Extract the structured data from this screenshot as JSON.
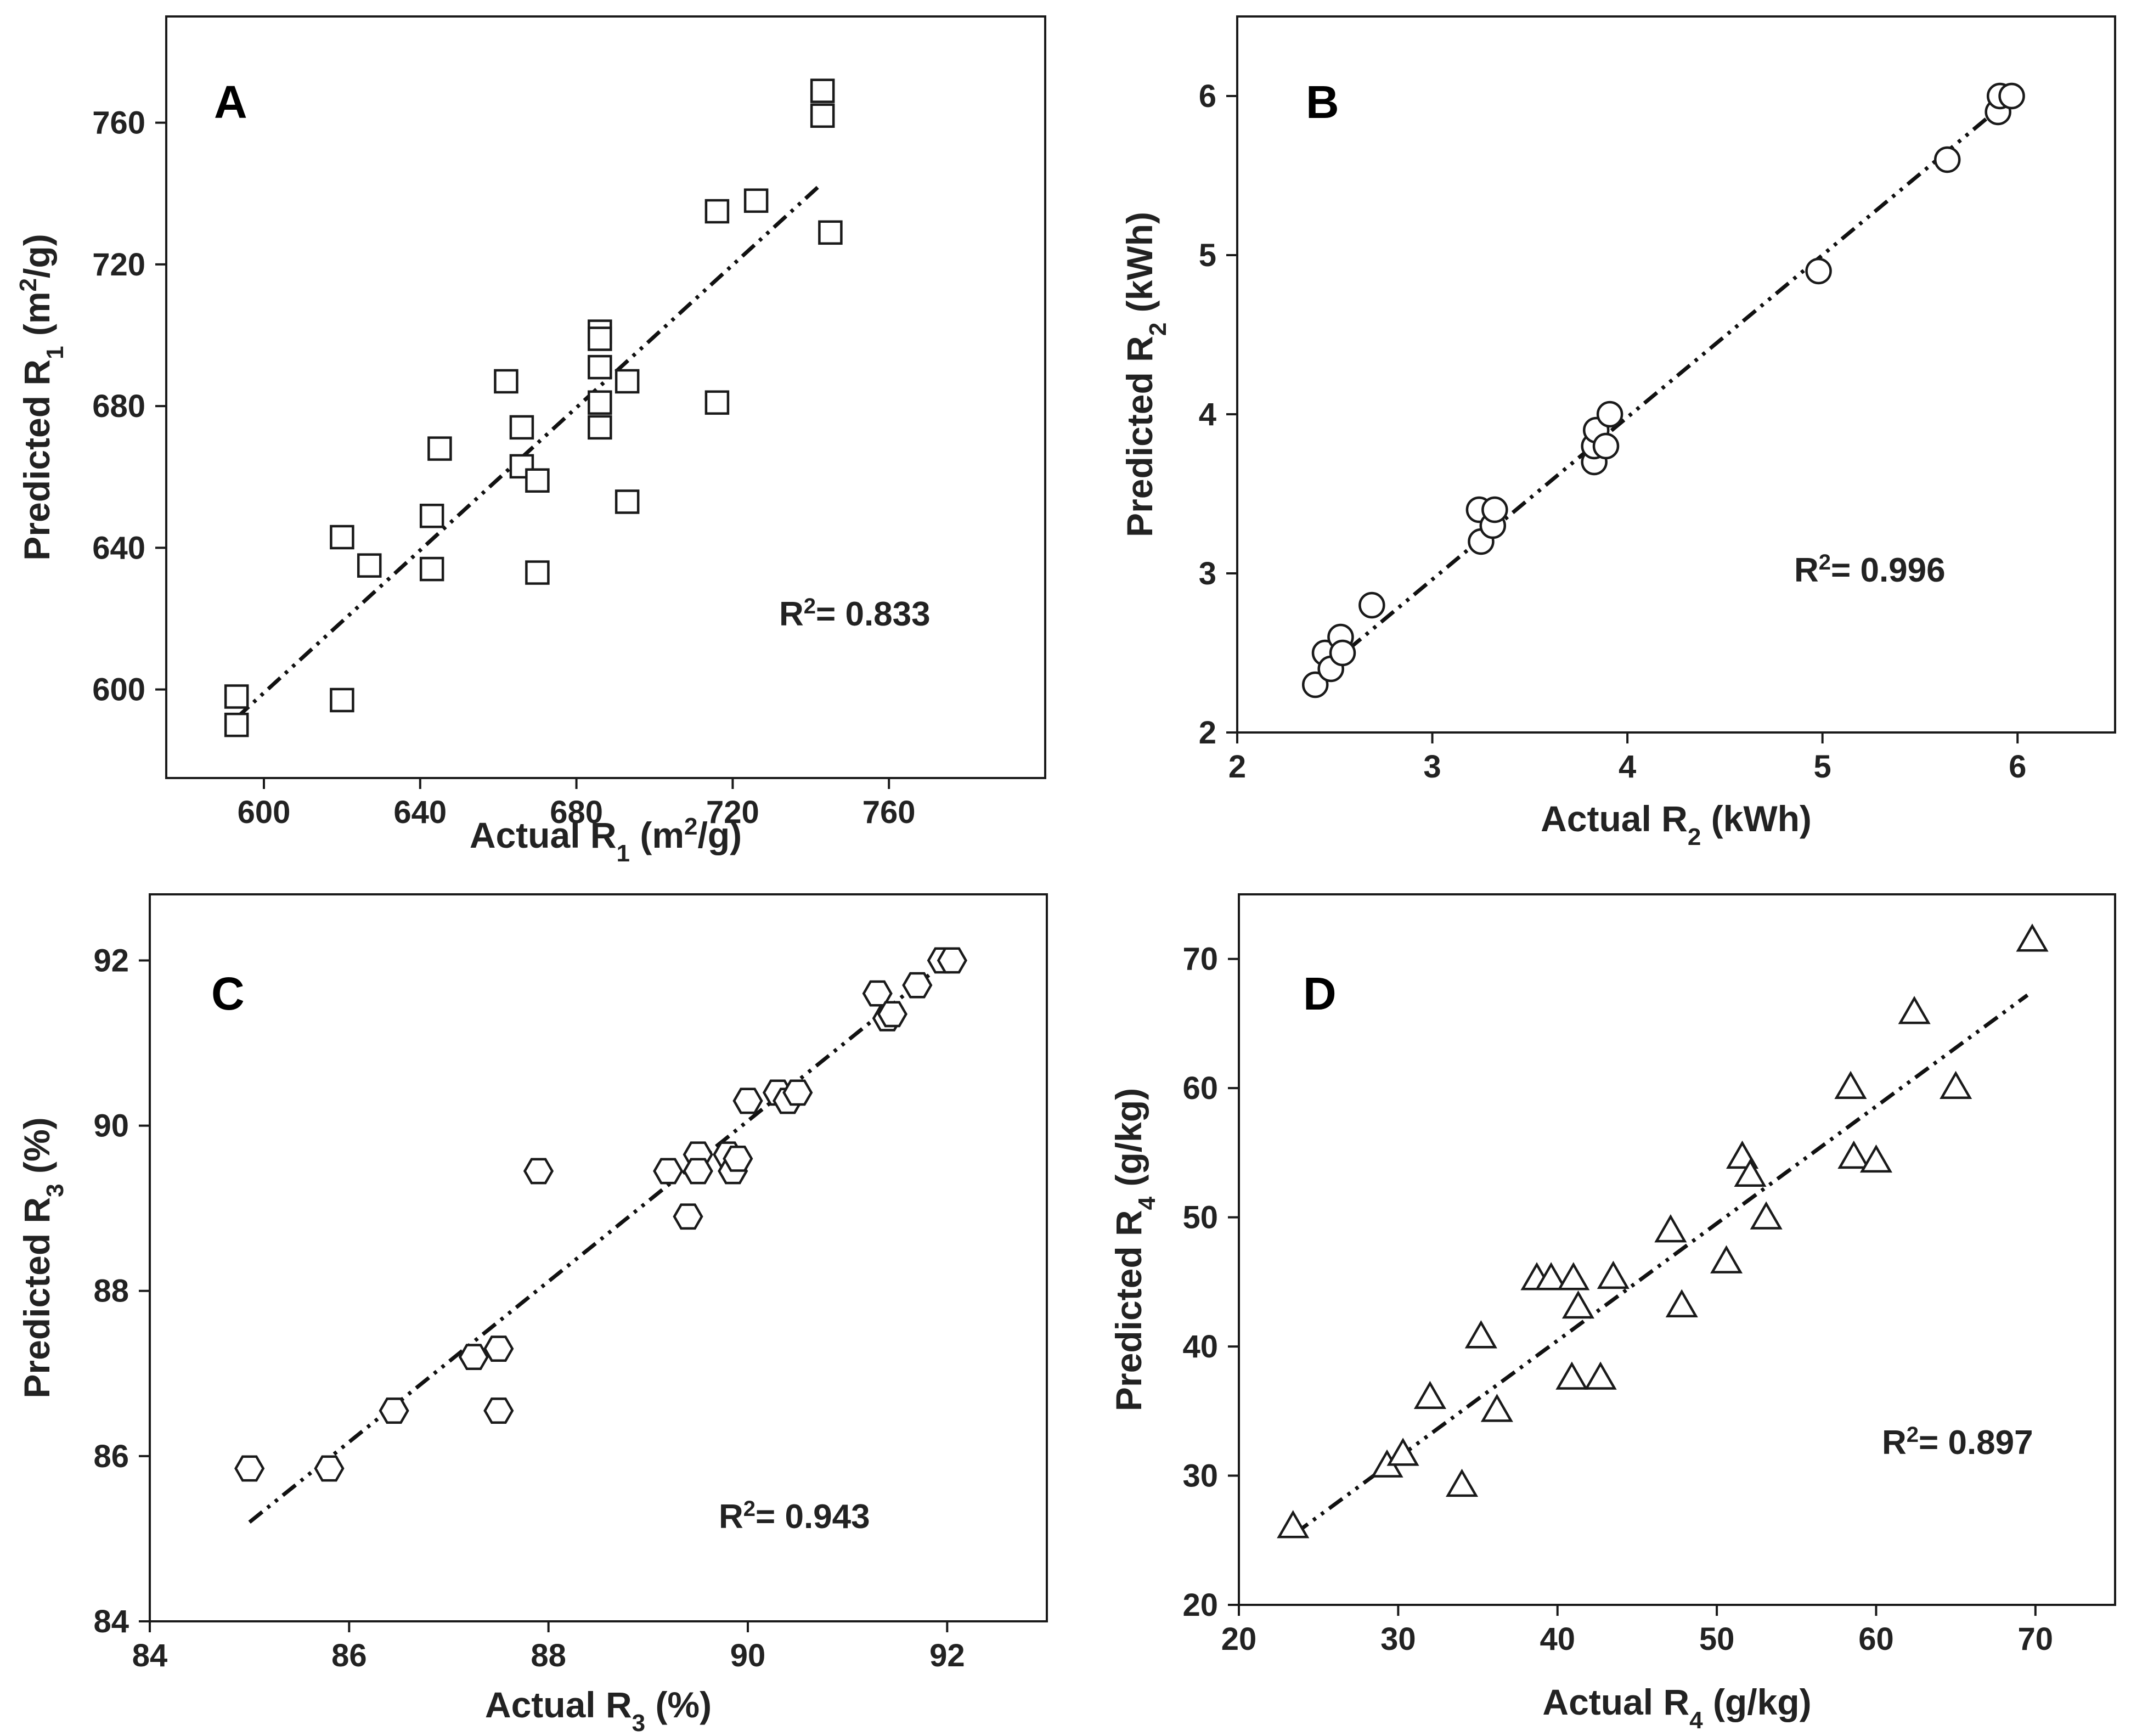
{
  "figure": {
    "description_free": true
  },
  "chart_data": [
    {
      "type": "scatter",
      "panel": "A",
      "xlabel": "Actual R1 (m2/g)",
      "xlabel_parts": {
        "pre": "Actual R",
        "sub": "1",
        "mid": " (m",
        "sup": "2",
        "post": "/g)"
      },
      "ylabel_parts": {
        "pre": "Predicted R",
        "sub": "1",
        "mid": " (m",
        "sup": "2",
        "post": "/g)"
      },
      "xlim": [
        575,
        800
      ],
      "ylim": [
        575,
        790
      ],
      "xticks": [
        600,
        640,
        680,
        720,
        760
      ],
      "yticks": [
        600,
        640,
        680,
        720,
        760
      ],
      "marker": "square",
      "r2_label": "R2= 0.833",
      "r2_parts": {
        "pre": "R",
        "sup": "2",
        "post": "= 0.833"
      },
      "fit": {
        "x": [
          593,
          743
        ],
        "y": [
          592,
          743
        ]
      },
      "points": [
        [
          593,
          598
        ],
        [
          593,
          590
        ],
        [
          620,
          643
        ],
        [
          620,
          597
        ],
        [
          627,
          635
        ],
        [
          643,
          649
        ],
        [
          643,
          634
        ],
        [
          645,
          668
        ],
        [
          662,
          687
        ],
        [
          666,
          674
        ],
        [
          666,
          663
        ],
        [
          670,
          659
        ],
        [
          670,
          633
        ],
        [
          686,
          701
        ],
        [
          686,
          699
        ],
        [
          686,
          691
        ],
        [
          686,
          681
        ],
        [
          686,
          674
        ],
        [
          693,
          687
        ],
        [
          693,
          653
        ],
        [
          716,
          735
        ],
        [
          716,
          681
        ],
        [
          726,
          738
        ],
        [
          743,
          769
        ],
        [
          743,
          762
        ],
        [
          745,
          729
        ]
      ]
    },
    {
      "type": "scatter",
      "panel": "B",
      "xlabel": "Actual R2 (kWh)",
      "xlabel_parts": {
        "pre": "Actual R",
        "sub": "2",
        "mid": " (kWh)",
        "sup": "",
        "post": ""
      },
      "ylabel_parts": {
        "pre": "Predicted R",
        "sub": "2",
        "mid": " (kWh)",
        "sup": "",
        "post": ""
      },
      "xlim": [
        2,
        6.5
      ],
      "ylim": [
        2,
        6.5
      ],
      "xticks": [
        2,
        3,
        4,
        5,
        6
      ],
      "yticks": [
        2,
        3,
        4,
        5,
        6
      ],
      "marker": "circle",
      "r2_label": "R2= 0.996",
      "r2_parts": {
        "pre": "R",
        "sup": "2",
        "post": "= 0.996"
      },
      "fit": {
        "x": [
          2.4,
          6.0
        ],
        "y": [
          2.35,
          6.02
        ]
      },
      "points": [
        [
          2.4,
          2.3
        ],
        [
          2.45,
          2.5
        ],
        [
          2.48,
          2.4
        ],
        [
          2.53,
          2.6
        ],
        [
          2.54,
          2.5
        ],
        [
          2.69,
          2.8
        ],
        [
          3.24,
          3.4
        ],
        [
          3.25,
          3.2
        ],
        [
          3.31,
          3.3
        ],
        [
          3.32,
          3.4
        ],
        [
          3.83,
          3.7
        ],
        [
          3.83,
          3.8
        ],
        [
          3.84,
          3.9
        ],
        [
          3.89,
          3.8
        ],
        [
          3.91,
          4.0
        ],
        [
          4.98,
          4.9
        ],
        [
          5.64,
          5.6
        ],
        [
          5.9,
          5.9
        ],
        [
          5.91,
          6.0
        ],
        [
          5.97,
          6.0
        ]
      ]
    },
    {
      "type": "scatter",
      "panel": "C",
      "xlabel": "Actual R3 (%)",
      "xlabel_parts": {
        "pre": "Actual R",
        "sub": "3",
        "mid": " (%)",
        "sup": "",
        "post": ""
      },
      "ylabel_parts": {
        "pre": "Predicted R",
        "sub": "3",
        "mid": " (%)",
        "sup": "",
        "post": ""
      },
      "xlim": [
        84,
        93
      ],
      "ylim": [
        84,
        92.8
      ],
      "xticks": [
        84,
        86,
        88,
        90,
        92
      ],
      "yticks": [
        84,
        86,
        88,
        90,
        92
      ],
      "marker": "hexagon",
      "r2_label": "R2= 0.943",
      "r2_parts": {
        "pre": "R",
        "sup": "2",
        "post": "= 0.943"
      },
      "fit": {
        "x": [
          85,
          92
        ],
        "y": [
          85.2,
          92
        ]
      },
      "points": [
        [
          85,
          85.85
        ],
        [
          85.8,
          85.85
        ],
        [
          86.45,
          86.55
        ],
        [
          87.25,
          87.2
        ],
        [
          87.5,
          87.3
        ],
        [
          87.5,
          86.55
        ],
        [
          87.9,
          89.45
        ],
        [
          89.2,
          89.45
        ],
        [
          89.4,
          88.9
        ],
        [
          89.5,
          89.65
        ],
        [
          89.5,
          89.45
        ],
        [
          89.8,
          89.65
        ],
        [
          89.85,
          89.45
        ],
        [
          89.9,
          89.6
        ],
        [
          90.0,
          90.3
        ],
        [
          90.3,
          90.4
        ],
        [
          90.4,
          90.3
        ],
        [
          90.5,
          90.4
        ],
        [
          91.3,
          91.6
        ],
        [
          91.4,
          91.3
        ],
        [
          91.45,
          91.35
        ],
        [
          91.7,
          91.7
        ],
        [
          91.95,
          92.0
        ],
        [
          92.05,
          92.0
        ]
      ]
    },
    {
      "type": "scatter",
      "panel": "D",
      "xlabel": "Actual R4 (g/kg)",
      "xlabel_parts": {
        "pre": "Actual R",
        "sub": "4",
        "mid": " (g/kg)",
        "sup": "",
        "post": ""
      },
      "ylabel_parts": {
        "pre": "Predicted R",
        "sub": "4",
        "mid": " (g/kg)",
        "sup": "",
        "post": ""
      },
      "xlim": [
        20,
        75
      ],
      "ylim": [
        20,
        75
      ],
      "xticks": [
        20,
        30,
        40,
        50,
        60,
        70
      ],
      "yticks": [
        20,
        30,
        40,
        50,
        60,
        70
      ],
      "marker": "triangle",
      "r2_label": "R2= 0.897",
      "r2_parts": {
        "pre": "R",
        "sup": "2",
        "post": "= 0.897"
      },
      "fit": {
        "x": [
          23.5,
          69.5
        ],
        "y": [
          25.5,
          67.2
        ]
      },
      "points": [
        [
          23.4,
          26.0
        ],
        [
          29.3,
          30.7
        ],
        [
          30.3,
          31.6
        ],
        [
          32.0,
          36.0
        ],
        [
          34.0,
          29.2
        ],
        [
          35.2,
          40.7
        ],
        [
          36.2,
          35.0
        ],
        [
          38.7,
          45.2
        ],
        [
          39.6,
          45.2
        ],
        [
          40.9,
          37.5
        ],
        [
          41.0,
          45.2
        ],
        [
          41.3,
          43.0
        ],
        [
          42.7,
          37.5
        ],
        [
          43.5,
          45.3
        ],
        [
          47.1,
          48.9
        ],
        [
          47.8,
          43.1
        ],
        [
          50.6,
          46.5
        ],
        [
          51.6,
          54.6
        ],
        [
          52.1,
          53.2
        ],
        [
          53.1,
          49.9
        ],
        [
          58.4,
          60.0
        ],
        [
          58.6,
          54.6
        ],
        [
          60.0,
          54.3
        ],
        [
          62.4,
          65.8
        ],
        [
          65.0,
          60.0
        ],
        [
          69.8,
          71.4
        ]
      ]
    }
  ]
}
